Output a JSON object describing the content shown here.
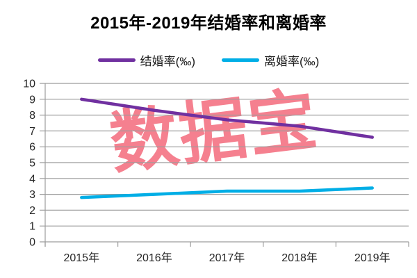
{
  "chart_data": {
    "type": "line",
    "title": "2015年-2019年结婚率和离婚率",
    "categories": [
      "2015年",
      "2016年",
      "2017年",
      "2018年",
      "2019年"
    ],
    "series": [
      {
        "name": "结婚率(‰)",
        "color": "#7030A0",
        "values": [
          9.0,
          8.3,
          7.7,
          7.3,
          6.6
        ]
      },
      {
        "name": "离婚率(‰)",
        "color": "#00AEE6",
        "values": [
          2.8,
          3.0,
          3.2,
          3.2,
          3.4
        ]
      }
    ],
    "ylim": [
      0,
      10
    ],
    "ytick_step": 1,
    "ytick_labels": [
      "0",
      "1",
      "2",
      "3",
      "4",
      "5",
      "6",
      "7",
      "8",
      "9",
      "10"
    ],
    "grid": true,
    "legend_position": "top",
    "watermark": {
      "text": "数据宝",
      "color": "#F5808F"
    },
    "axis_color": "#9c9c9c",
    "tick_label_color": "#262626"
  }
}
